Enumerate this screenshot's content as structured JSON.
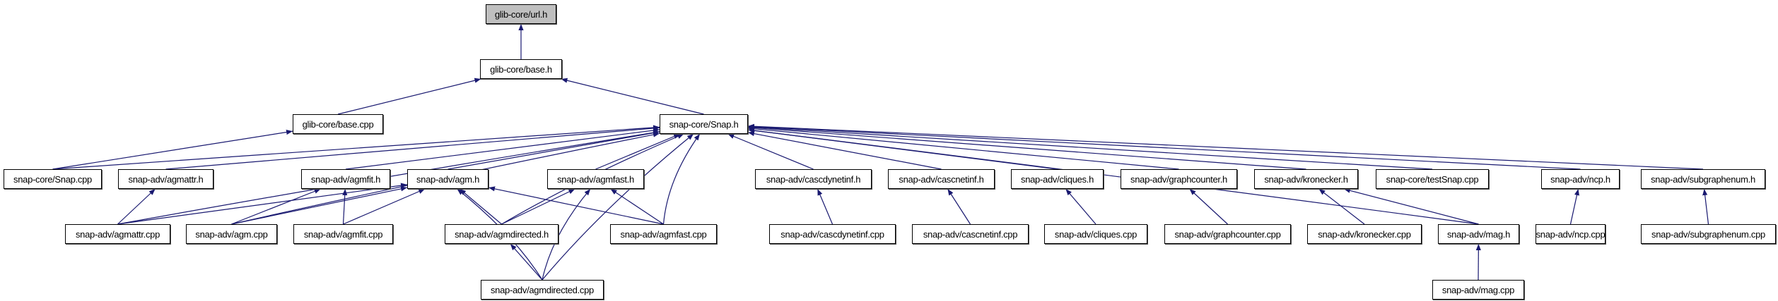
{
  "graph": {
    "edge_color": "#191970",
    "root_fill": "#bfbfbf",
    "nodes": [
      {
        "id": "url_h",
        "label": "glib-core/url.h",
        "root": true
      },
      {
        "id": "base_h",
        "label": "glib-core/base.h"
      },
      {
        "id": "base_cpp",
        "label": "glib-core/base.cpp"
      },
      {
        "id": "snap_h",
        "label": "snap-core/Snap.h"
      },
      {
        "id": "snap_cpp",
        "label": "snap-core/Snap.cpp"
      },
      {
        "id": "agmattr_h",
        "label": "snap-adv/agmattr.h"
      },
      {
        "id": "agmfit_h",
        "label": "snap-adv/agmfit.h"
      },
      {
        "id": "agm_h",
        "label": "snap-adv/agm.h"
      },
      {
        "id": "agmfast_h",
        "label": "snap-adv/agmfast.h"
      },
      {
        "id": "cascdynetinf_h",
        "label": "snap-adv/cascdynetinf.h"
      },
      {
        "id": "cascnetinf_h",
        "label": "snap-adv/cascnetinf.h"
      },
      {
        "id": "cliques_h",
        "label": "snap-adv/cliques.h"
      },
      {
        "id": "graphcounter_h",
        "label": "snap-adv/graphcounter.h"
      },
      {
        "id": "kronecker_h",
        "label": "snap-adv/kronecker.h"
      },
      {
        "id": "testsnap_cpp",
        "label": "snap-core/testSnap.cpp"
      },
      {
        "id": "ncp_h",
        "label": "snap-adv/ncp.h"
      },
      {
        "id": "subgraphenum_h",
        "label": "snap-adv/subgraphenum.h"
      },
      {
        "id": "agmattr_cpp",
        "label": "snap-adv/agmattr.cpp"
      },
      {
        "id": "agm_cpp",
        "label": "snap-adv/agm.cpp"
      },
      {
        "id": "agmfit_cpp",
        "label": "snap-adv/agmfit.cpp"
      },
      {
        "id": "agmdirected_h",
        "label": "snap-adv/agmdirected.h"
      },
      {
        "id": "agmfast_cpp",
        "label": "snap-adv/agmfast.cpp"
      },
      {
        "id": "cascdynetinf_cpp",
        "label": "snap-adv/cascdynetinf.cpp"
      },
      {
        "id": "cascnetinf_cpp",
        "label": "snap-adv/cascnetinf.cpp"
      },
      {
        "id": "cliques_cpp",
        "label": "snap-adv/cliques.cpp"
      },
      {
        "id": "graphcounter_cpp",
        "label": "snap-adv/graphcounter.cpp"
      },
      {
        "id": "kronecker_cpp",
        "label": "snap-adv/kronecker.cpp"
      },
      {
        "id": "mag_h",
        "label": "snap-adv/mag.h"
      },
      {
        "id": "ncp_cpp",
        "label": "snap-adv/ncp.cpp"
      },
      {
        "id": "subgraphenum_cpp",
        "label": "snap-adv/subgraphenum.cpp"
      },
      {
        "id": "agmdirected_cpp",
        "label": "snap-adv/agmdirected.cpp"
      },
      {
        "id": "mag_cpp",
        "label": "snap-adv/mag.cpp"
      }
    ],
    "edges": [
      [
        "base_h",
        "url_h"
      ],
      [
        "base_cpp",
        "base_h"
      ],
      [
        "snap_h",
        "base_h"
      ],
      [
        "snap_cpp",
        "base_cpp"
      ],
      [
        "snap_cpp",
        "snap_h"
      ],
      [
        "agmattr_h",
        "snap_h"
      ],
      [
        "agmfit_h",
        "snap_h"
      ],
      [
        "agm_h",
        "snap_h"
      ],
      [
        "agmfast_h",
        "snap_h"
      ],
      [
        "cascdynetinf_h",
        "snap_h"
      ],
      [
        "cascnetinf_h",
        "snap_h"
      ],
      [
        "cliques_h",
        "snap_h"
      ],
      [
        "graphcounter_h",
        "snap_h"
      ],
      [
        "kronecker_h",
        "snap_h"
      ],
      [
        "testsnap_cpp",
        "snap_h"
      ],
      [
        "ncp_h",
        "snap_h"
      ],
      [
        "subgraphenum_h",
        "snap_h"
      ],
      [
        "mag_h",
        "snap_h"
      ],
      [
        "agmattr_cpp",
        "snap_h"
      ],
      [
        "agmattr_cpp",
        "agmattr_h"
      ],
      [
        "agmattr_cpp",
        "agm_h"
      ],
      [
        "agm_cpp",
        "snap_h"
      ],
      [
        "agm_cpp",
        "agmfit_h"
      ],
      [
        "agm_cpp",
        "agm_h"
      ],
      [
        "agmfit_cpp",
        "agmfit_h"
      ],
      [
        "agmfit_cpp",
        "agm_h"
      ],
      [
        "agmdirected_h",
        "snap_h"
      ],
      [
        "agmdirected_h",
        "agm_h"
      ],
      [
        "agmdirected_h",
        "agmfast_h"
      ],
      [
        "agmfast_cpp",
        "snap_h"
      ],
      [
        "agmfast_cpp",
        "agmfast_h"
      ],
      [
        "agmfast_cpp",
        "agm_h"
      ],
      [
        "agmdirected_cpp",
        "agmdirected_h"
      ],
      [
        "agmdirected_cpp",
        "agmfast_h"
      ],
      [
        "agmdirected_cpp",
        "agm_h"
      ],
      [
        "agmdirected_cpp",
        "snap_h"
      ],
      [
        "cascdynetinf_cpp",
        "cascdynetinf_h"
      ],
      [
        "cascnetinf_cpp",
        "cascnetinf_h"
      ],
      [
        "cliques_cpp",
        "cliques_h"
      ],
      [
        "graphcounter_cpp",
        "graphcounter_h"
      ],
      [
        "kronecker_cpp",
        "kronecker_h"
      ],
      [
        "mag_h",
        "kronecker_h"
      ],
      [
        "ncp_cpp",
        "ncp_h"
      ],
      [
        "subgraphenum_cpp",
        "subgraphenum_h"
      ],
      [
        "mag_cpp",
        "mag_h"
      ]
    ]
  }
}
